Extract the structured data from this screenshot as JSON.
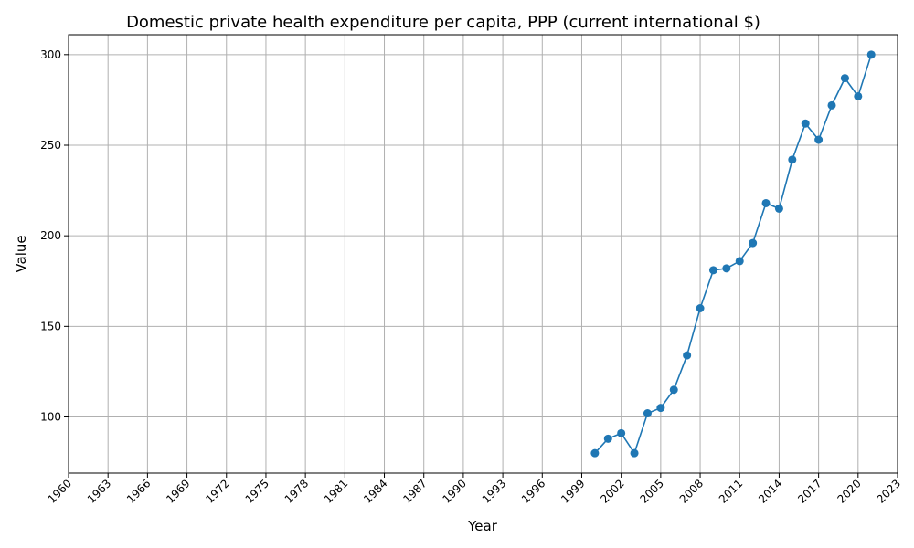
{
  "chart_data": {
    "type": "line",
    "title": "Domestic private health expenditure per capita, PPP (current international $)",
    "xlabel": "Year",
    "ylabel": "Value",
    "xlim": [
      1960,
      2023
    ],
    "ylim": [
      69,
      311
    ],
    "x_ticks": [
      1960,
      1963,
      1966,
      1969,
      1972,
      1975,
      1978,
      1981,
      1984,
      1987,
      1990,
      1993,
      1996,
      1999,
      2002,
      2005,
      2008,
      2011,
      2014,
      2017,
      2020,
      2023
    ],
    "y_ticks": [
      100,
      150,
      200,
      250,
      300
    ],
    "grid": true,
    "color": "#1f77b4",
    "series": [
      {
        "x": [
          2000,
          2001,
          2002,
          2003,
          2004,
          2005,
          2006,
          2007,
          2008,
          2009,
          2010,
          2011,
          2012,
          2013,
          2014,
          2015,
          2016,
          2017,
          2018,
          2019,
          2020,
          2021
        ],
        "values": [
          80,
          88,
          91,
          80,
          102,
          105,
          115,
          134,
          160,
          181,
          182,
          186,
          196,
          218,
          215,
          242,
          262,
          253,
          272,
          287,
          277,
          300
        ]
      }
    ]
  }
}
